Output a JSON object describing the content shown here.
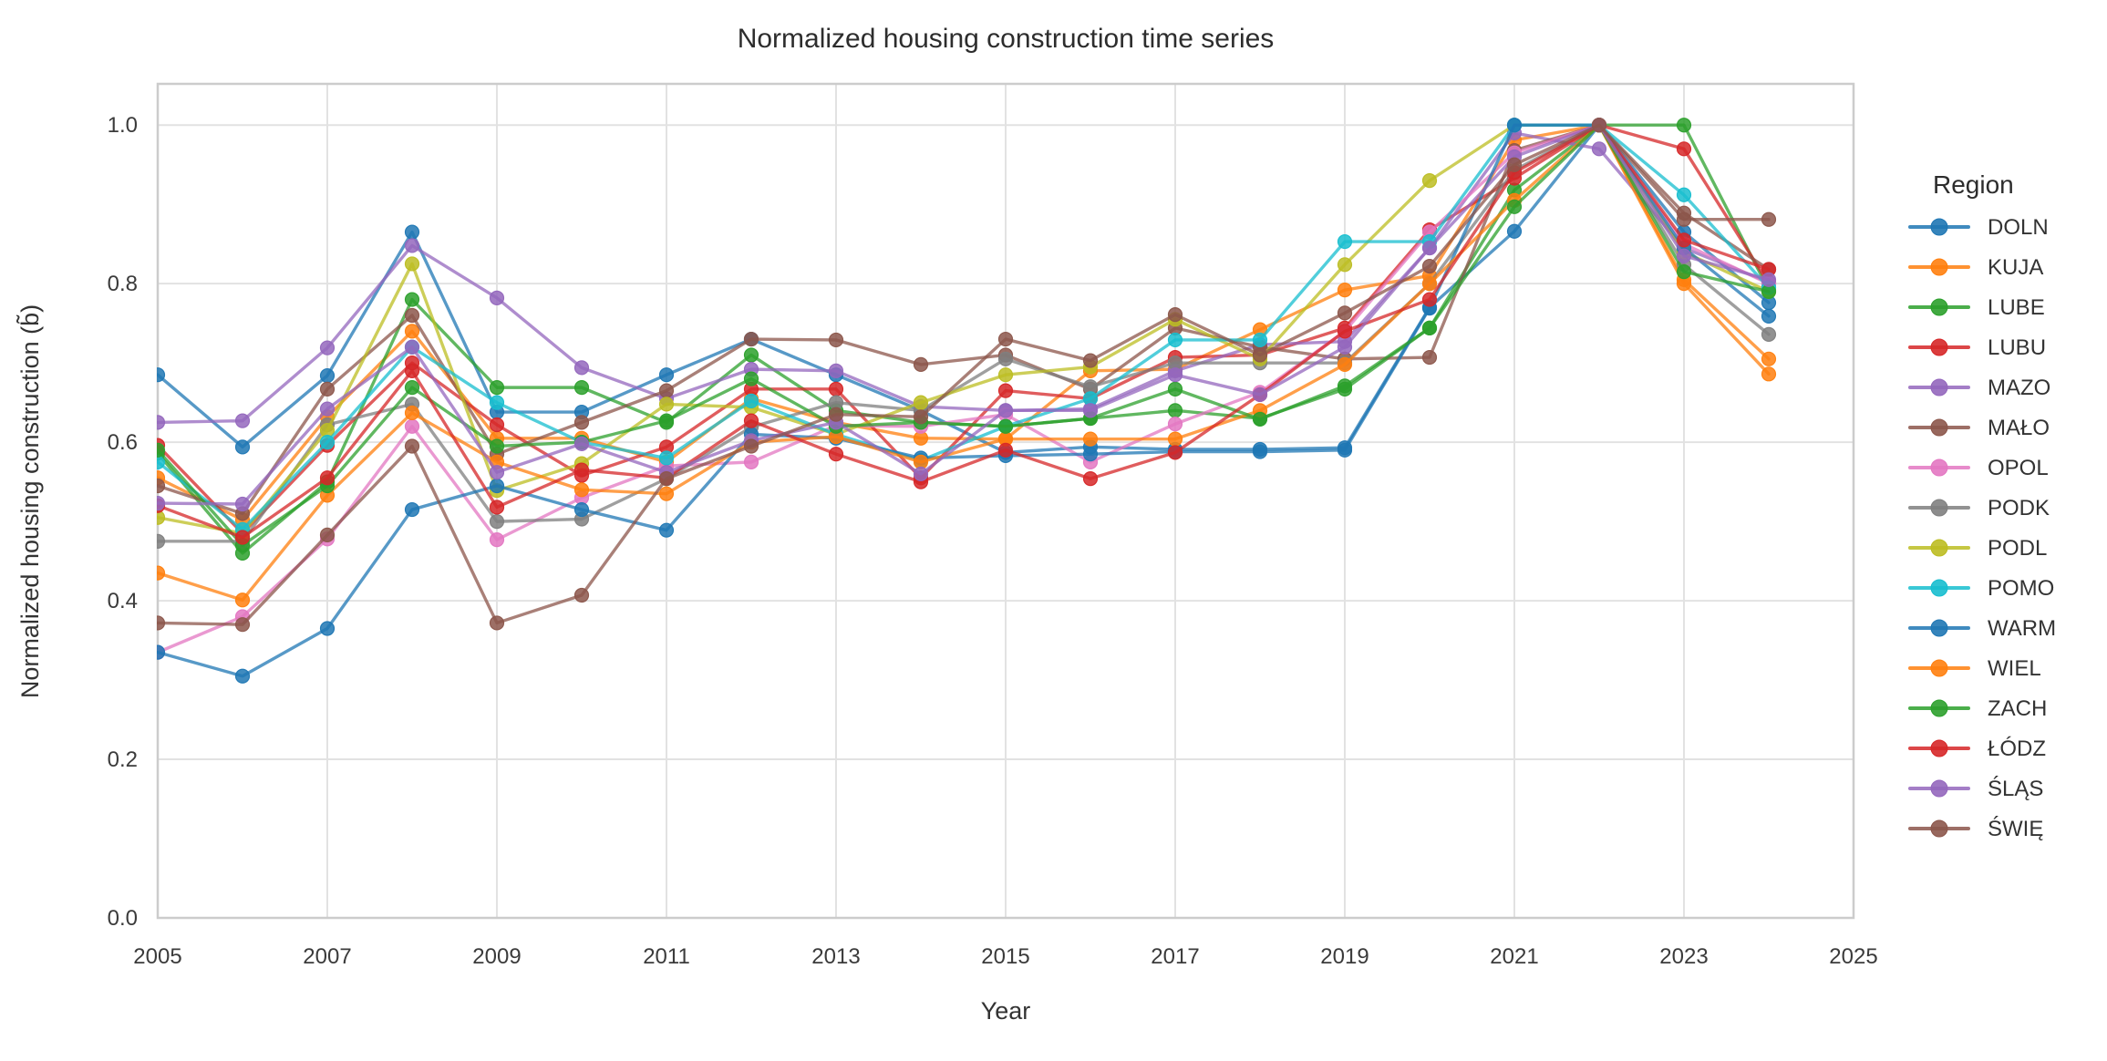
{
  "chart_data": {
    "type": "line",
    "title": "Normalized housing construction time series",
    "xlabel": "Year",
    "ylabel": "Normalized housing construction (b̃)",
    "legend_title": "Region",
    "legend_position": "right",
    "grid": true,
    "xlim": [
      2005,
      2025
    ],
    "ylim": [
      0.0,
      1.052
    ],
    "xticks": [
      2005,
      2007,
      2009,
      2011,
      2013,
      2015,
      2017,
      2019,
      2021,
      2023,
      2025
    ],
    "ytick_labels": [
      "0.0",
      "0.2",
      "0.4",
      "0.6",
      "0.8",
      "1.0"
    ],
    "yticks": [
      0.0,
      0.2,
      0.4,
      0.6,
      0.8,
      1.0
    ],
    "x": [
      2005,
      2006,
      2007,
      2008,
      2009,
      2010,
      2011,
      2012,
      2013,
      2014,
      2015,
      2016,
      2017,
      2018,
      2019,
      2020,
      2021,
      2022,
      2023,
      2024
    ],
    "series": [
      {
        "name": "DOLN",
        "color": "#1f77b4",
        "values": [
          0.685,
          0.594,
          0.684,
          0.865,
          0.638,
          0.638,
          0.685,
          0.73,
          0.685,
          0.64,
          0.587,
          0.594,
          0.591,
          0.591,
          0.593,
          0.77,
          0.866,
          1.0,
          0.865,
          0.776
        ]
      },
      {
        "name": "KUJA",
        "color": "#ff7f0e",
        "values": [
          0.555,
          0.502,
          0.632,
          0.74,
          0.605,
          0.605,
          0.575,
          0.655,
          0.625,
          0.605,
          0.604,
          0.69,
          0.692,
          0.742,
          0.792,
          0.81,
          0.981,
          1.0,
          0.805,
          0.705
        ]
      },
      {
        "name": "LUBE",
        "color": "#2ca02c",
        "values": [
          0.586,
          0.46,
          0.55,
          0.78,
          0.669,
          0.669,
          0.625,
          0.71,
          0.64,
          0.625,
          0.62,
          0.63,
          0.64,
          0.63,
          0.667,
          0.744,
          0.918,
          1.0,
          1.0,
          0.792
        ]
      },
      {
        "name": "LUBU",
        "color": "#d62728",
        "values": [
          0.596,
          0.485,
          0.596,
          0.7,
          0.622,
          0.558,
          0.594,
          0.667,
          0.667,
          0.555,
          0.665,
          0.655,
          0.707,
          0.71,
          0.744,
          0.868,
          0.933,
          1.0,
          0.97,
          0.8
        ]
      },
      {
        "name": "MAZO",
        "color": "#9467bd",
        "values": [
          0.625,
          0.627,
          0.719,
          0.848,
          0.782,
          0.694,
          0.655,
          0.692,
          0.69,
          0.645,
          0.64,
          0.642,
          0.69,
          0.723,
          0.727,
          0.845,
          0.99,
          0.97,
          0.845,
          0.802
        ]
      },
      {
        "name": "MAŁO",
        "color": "#8c564b",
        "values": [
          0.545,
          0.51,
          0.667,
          0.76,
          0.585,
          0.625,
          0.665,
          0.73,
          0.729,
          0.698,
          0.71,
          0.667,
          0.744,
          0.72,
          0.705,
          0.707,
          0.968,
          1.0,
          0.889,
          0.818
        ]
      },
      {
        "name": "OPOL",
        "color": "#e377c2",
        "values": [
          0.335,
          0.38,
          0.478,
          0.62,
          0.477,
          0.53,
          0.57,
          0.575,
          0.621,
          0.62,
          0.635,
          0.575,
          0.623,
          0.663,
          0.74,
          0.865,
          0.965,
          1.0,
          0.85,
          0.8
        ]
      },
      {
        "name": "PODK",
        "color": "#7f7f7f",
        "values": [
          0.475,
          0.475,
          0.622,
          0.648,
          0.5,
          0.503,
          0.554,
          0.619,
          0.65,
          0.64,
          0.705,
          0.67,
          0.7,
          0.7,
          0.7,
          0.8,
          0.943,
          1.0,
          0.824,
          0.736
        ]
      },
      {
        "name": "PODL",
        "color": "#bcbd22",
        "values": [
          0.505,
          0.485,
          0.615,
          0.825,
          0.539,
          0.573,
          0.648,
          0.644,
          0.61,
          0.65,
          0.685,
          0.695,
          0.755,
          0.705,
          0.824,
          0.93,
          1.0,
          1.0,
          0.84,
          0.79
        ]
      },
      {
        "name": "POMO",
        "color": "#17becf",
        "values": [
          0.575,
          0.49,
          0.6,
          0.72,
          0.65,
          0.6,
          0.58,
          0.652,
          0.61,
          0.577,
          0.62,
          0.655,
          0.729,
          0.729,
          0.853,
          0.853,
          1.0,
          1.0,
          0.912,
          0.795
        ]
      },
      {
        "name": "WARM",
        "color": "#1f77b4",
        "values": [
          0.335,
          0.305,
          0.365,
          0.515,
          0.545,
          0.515,
          0.489,
          0.61,
          0.605,
          0.58,
          0.583,
          0.585,
          0.588,
          0.588,
          0.59,
          0.769,
          1.0,
          1.0,
          0.845,
          0.759
        ]
      },
      {
        "name": "WIEL",
        "color": "#ff7f0e",
        "values": [
          0.435,
          0.401,
          0.533,
          0.637,
          0.575,
          0.54,
          0.535,
          0.6,
          0.607,
          0.575,
          0.604,
          0.604,
          0.604,
          0.64,
          0.698,
          0.8,
          0.905,
          1.0,
          0.8,
          0.686
        ]
      },
      {
        "name": "ZACH",
        "color": "#2ca02c",
        "values": [
          0.59,
          0.47,
          0.545,
          0.669,
          0.595,
          0.6,
          0.627,
          0.68,
          0.62,
          0.625,
          0.62,
          0.63,
          0.667,
          0.629,
          0.671,
          0.744,
          0.897,
          1.0,
          0.815,
          0.79
        ]
      },
      {
        "name": "ŁÓDZ",
        "color": "#d62728",
        "values": [
          0.52,
          0.48,
          0.555,
          0.69,
          0.518,
          0.565,
          0.555,
          0.627,
          0.585,
          0.55,
          0.59,
          0.554,
          0.587,
          0.66,
          0.74,
          0.78,
          0.94,
          1.0,
          0.855,
          0.818
        ]
      },
      {
        "name": "ŚLĄS",
        "color": "#9467bd",
        "values": [
          0.523,
          0.522,
          0.642,
          0.72,
          0.562,
          0.598,
          0.562,
          0.602,
          0.625,
          0.56,
          0.64,
          0.64,
          0.685,
          0.66,
          0.72,
          0.845,
          0.96,
          1.0,
          0.835,
          0.805
        ]
      },
      {
        "name": "ŚWIĘ",
        "color": "#8c564b",
        "values": [
          0.372,
          0.37,
          0.483,
          0.595,
          0.372,
          0.407,
          0.554,
          0.595,
          0.635,
          0.632,
          0.73,
          0.703,
          0.761,
          0.71,
          0.763,
          0.822,
          0.95,
          1.0,
          0.881,
          0.881
        ]
      }
    ],
    "style": {
      "grid_color": "#e2e2e2",
      "spine_color": "#cccccc",
      "line_opacity": 0.75,
      "marker_opacity": 0.85
    }
  }
}
